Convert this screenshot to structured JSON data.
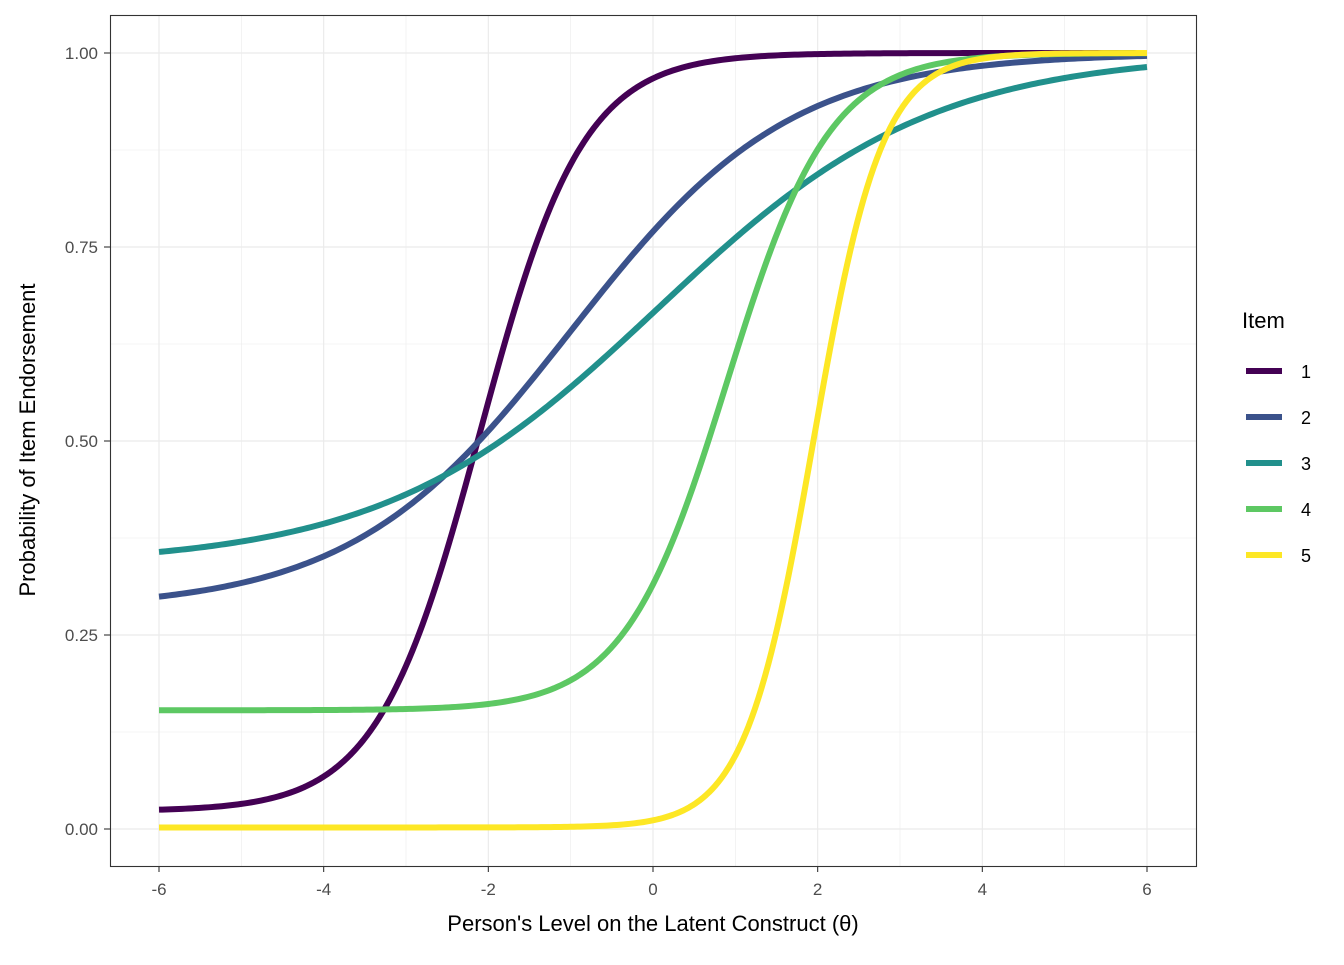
{
  "chart_data": {
    "type": "line",
    "title": "",
    "xlabel": "Person's Level on the Latent Construct (θ)",
    "ylabel": "Probability of Item Endorsement",
    "xlim": [
      -6,
      6
    ],
    "ylim": [
      0,
      1
    ],
    "x_ticks": [
      -6,
      -4,
      -2,
      0,
      2,
      4,
      6
    ],
    "x_tick_labels": [
      "-6",
      "-4",
      "-2",
      "0",
      "2",
      "4",
      "6"
    ],
    "y_ticks": [
      0,
      0.25,
      0.5,
      0.75,
      1
    ],
    "y_tick_labels": [
      "0.00",
      "0.25",
      "0.50",
      "0.75",
      "1.00"
    ],
    "grid": true,
    "legend": {
      "title": "Item",
      "placement": "right"
    },
    "model": "3PL: P = c + (1 - c) / (1 + exp(-a(θ - b)))",
    "series": [
      {
        "name": "1",
        "color": "#440154",
        "a": 1.6,
        "b": -2.1,
        "c": 0.023
      },
      {
        "name": "2",
        "color": "#3B528B",
        "a": 0.75,
        "b": -1.0,
        "c": 0.283
      },
      {
        "name": "3",
        "color": "#21908C",
        "a": 0.6,
        "b": 0.05,
        "c": 0.34
      },
      {
        "name": "4",
        "color": "#5DC863",
        "a": 1.6,
        "b": 0.9,
        "c": 0.153
      },
      {
        "name": "5",
        "color": "#FDE725",
        "a": 2.4,
        "b": 1.95,
        "c": 0.002
      }
    ]
  }
}
